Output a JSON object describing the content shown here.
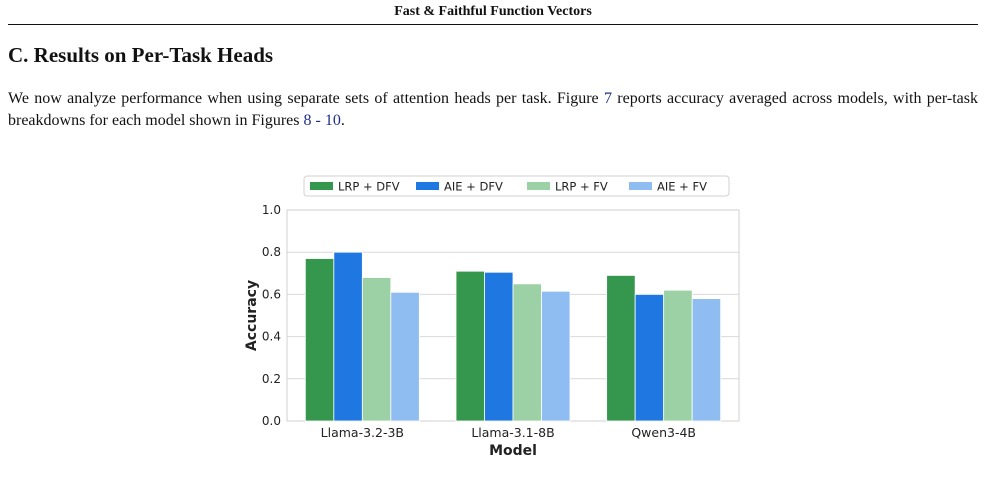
{
  "page": {
    "running_header": "Fast & Faithful Function Vectors",
    "section_title": "C. Results on Per-Task Heads",
    "paragraph": {
      "before_fig": "We now analyze performance when using separate sets of attention heads per task. Figure ",
      "fig_ref": "7",
      "middle": " reports accuracy averaged across models, with per-task breakdowns for each model shown in Figures ",
      "ref_a": "8",
      "dash": " - ",
      "ref_b": "10",
      "end": "."
    }
  },
  "chart_data": {
    "type": "bar",
    "categories": [
      "Llama-3.2-3B",
      "Llama-3.1-8B",
      "Qwen3-4B"
    ],
    "series": [
      {
        "name": "LRP + DFV",
        "color": "#35964e",
        "values": [
          0.77,
          0.71,
          0.69
        ]
      },
      {
        "name": "AIE + DFV",
        "color": "#1f78e2",
        "values": [
          0.8,
          0.705,
          0.6
        ]
      },
      {
        "name": "LRP + FV",
        "color": "#9bd1a4",
        "values": [
          0.68,
          0.65,
          0.62
        ]
      },
      {
        "name": "AIE + FV",
        "color": "#8fbdf2",
        "values": [
          0.61,
          0.615,
          0.58
        ]
      }
    ],
    "xlabel": "Model",
    "ylabel": "Accuracy",
    "ylim": [
      0,
      1.0
    ],
    "yticks": [
      "0.0",
      "0.2",
      "0.4",
      "0.6",
      "0.8",
      "1.0"
    ],
    "grid": true,
    "legend_position": "top"
  }
}
